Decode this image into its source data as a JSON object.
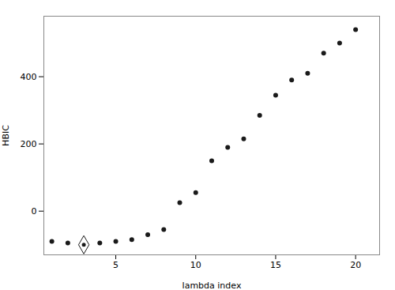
{
  "chart_data": {
    "type": "scatter",
    "x": [
      1,
      2,
      3,
      4,
      5,
      6,
      7,
      8,
      9,
      10,
      11,
      12,
      13,
      14,
      15,
      16,
      17,
      18,
      19,
      20
    ],
    "y": [
      -90,
      -95,
      -100,
      -95,
      -90,
      -85,
      -70,
      -55,
      25,
      55,
      150,
      190,
      215,
      285,
      345,
      390,
      410,
      470,
      500,
      540
    ],
    "selected_index": 3,
    "xlabel": "lambda index",
    "ylabel": "HBIC",
    "xlim": [
      0.5,
      21.5
    ],
    "ylim": [
      -130,
      580
    ],
    "xticks": [
      5,
      10,
      15,
      20
    ],
    "yticks": [
      0,
      200,
      400
    ],
    "color": "#1a1a1a",
    "marker": "circle",
    "grid": false
  }
}
